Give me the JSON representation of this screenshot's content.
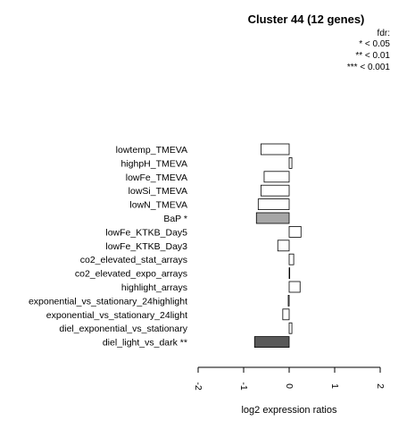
{
  "chart_data": {
    "type": "bar",
    "orientation": "horizontal",
    "title": "Cluster 44 (12 genes)",
    "xlabel": "log2 expression ratios",
    "ylabel": "",
    "xlim": [
      -2,
      2
    ],
    "xticks": [
      "-2",
      "-1",
      "0",
      "1",
      "2"
    ],
    "tick_values": [
      -2,
      -1,
      0,
      1,
      2
    ],
    "legend": {
      "title": "fdr:",
      "entries": [
        "* < 0.05",
        "** < 0.01",
        "*** < 0.001"
      ],
      "position": "top-right"
    },
    "categories": [
      "lowtemp_TMEVA",
      "highpH_TMEVA",
      "lowFe_TMEVA",
      "lowSi_TMEVA",
      "lowN_TMEVA",
      "BaP *",
      "lowFe_KTKB_Day5",
      "lowFe_KTKB_Day3",
      "co2_elevated_stat_arrays",
      "co2_elevated_expo_arrays",
      "highlight_arrays",
      "exponential_vs_stationary_24highlight",
      "exponential_vs_stationary_24light",
      "diel_exponential_vs_stationary",
      "diel_light_vs_dark **"
    ],
    "values": [
      -0.62,
      0.06,
      -0.55,
      -0.62,
      -0.68,
      -0.72,
      0.26,
      -0.25,
      0.1,
      0.0,
      0.24,
      -0.02,
      -0.14,
      0.06,
      -0.76
    ],
    "significance": [
      "",
      "",
      "",
      "",
      "",
      "*",
      "",
      "",
      "",
      "",
      "",
      "",
      "",
      "",
      "**"
    ],
    "colors": {
      "default": "#ffffff",
      "*": "#a6a6a6",
      "**": "#595959",
      "stroke": "#000000"
    }
  }
}
